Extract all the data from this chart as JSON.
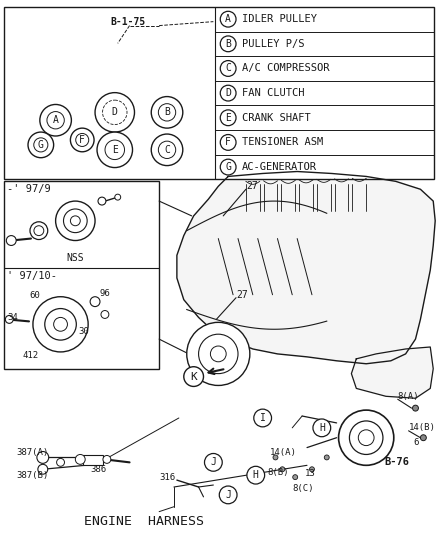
{
  "bg_color": "#ffffff",
  "line_color": "#1a1a1a",
  "text_color": "#1a1a1a",
  "legend_items": [
    [
      "A",
      "IDLER PULLEY"
    ],
    [
      "B",
      "PULLEY P/S"
    ],
    [
      "C",
      "A/C COMPRESSOR"
    ],
    [
      "D",
      "FAN CLUTCH"
    ],
    [
      "E",
      "CRANK SHAFT"
    ],
    [
      "F",
      "TENSIONER ASM"
    ],
    [
      "G",
      "AC-GENERATOR"
    ]
  ],
  "top_label": "B-1-75",
  "bottom_label": "B-76",
  "engine_harness": "ENGINE  HARNESS",
  "pulley_layout": {
    "A": [
      55,
      118,
      16
    ],
    "D": [
      115,
      110,
      20
    ],
    "B": [
      168,
      110,
      16
    ],
    "F": [
      82,
      138,
      12
    ],
    "G": [
      40,
      143,
      13
    ],
    "E": [
      115,
      148,
      18
    ],
    "C": [
      168,
      148,
      16
    ]
  }
}
